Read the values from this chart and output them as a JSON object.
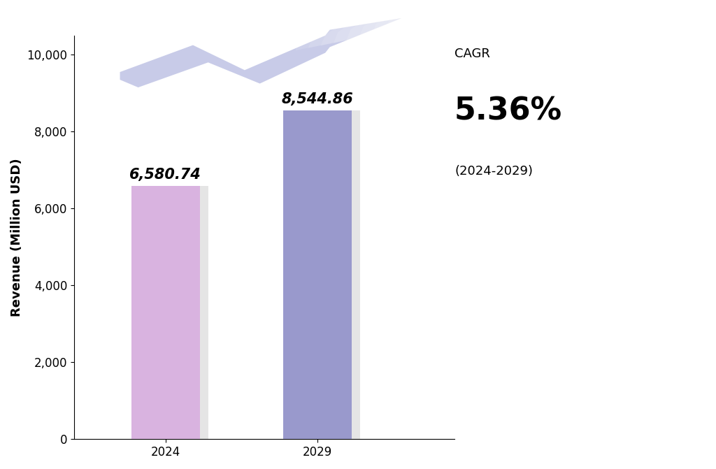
{
  "categories": [
    "2024",
    "2029"
  ],
  "values": [
    6580.74,
    8544.86
  ],
  "bar_colors": [
    "#d9b3e0",
    "#9999cc"
  ],
  "bar_labels": [
    "6,580.74",
    "8,544.86"
  ],
  "ylabel": "Revenue (Million USD)",
  "ylim": [
    0,
    10500
  ],
  "yticks": [
    0,
    2000,
    4000,
    6000,
    8000,
    10000
  ],
  "cagr_label": "CAGR",
  "cagr_value": "5.36%",
  "cagr_period": "(2024-2029)",
  "background_color": "#ffffff",
  "arrow_color": "#b3b8e0",
  "shadow_color": "#aaaaaa",
  "bar_label_fontsize": 15,
  "cagr_fontsize_label": 13,
  "cagr_fontsize_value": 32,
  "cagr_fontsize_period": 13,
  "axis_label_fontsize": 13,
  "tick_fontsize": 12
}
